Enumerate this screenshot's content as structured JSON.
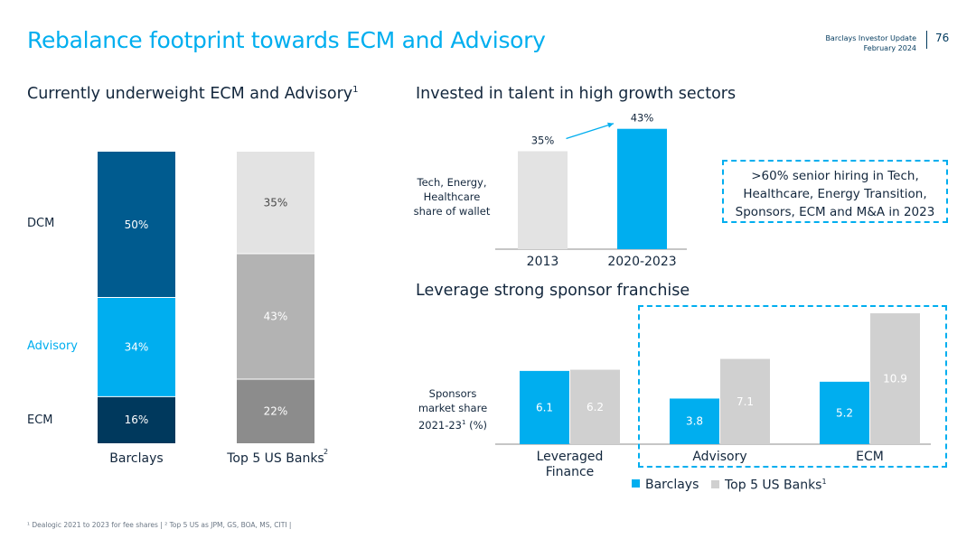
{
  "header": {
    "title": "Rebalance footprint towards ECM and Advisory",
    "doc_title": "Barclays Investor Update",
    "doc_date": "February 2024",
    "page_number": "76"
  },
  "colors": {
    "dark_navy": "#00395d",
    "mid_blue": "#005b8f",
    "bright_blue": "#00aeef",
    "grey_light": "#e3e3e3",
    "grey_mid": "#b3b3b3",
    "grey_dark": "#8c8c8c"
  },
  "left": {
    "heading": "Currently underweight ECM and Advisory",
    "heading_sup": "1",
    "row_labels": [
      "DCM",
      "Advisory",
      "ECM"
    ],
    "bar2_sup": "2"
  },
  "talent": {
    "heading": "Invested in talent in high growth sectors",
    "ylabel": "Tech, Energy, Healthcare share of wallet"
  },
  "callout": {
    "text": ">60% senior hiring in Tech, Healthcare, Energy Transition, Sponsors, ECM and M&A in 2023"
  },
  "sponsor": {
    "heading": "Leverage strong sponsor franchise",
    "ylabel": "Sponsors market share 2021-23",
    "ylabel_sup": "1",
    "ylabel_unit": "(%)",
    "legend_sup": "1"
  },
  "footnote": "¹ Dealogic 2021 to 2023 for fee shares | ² Top 5 US as JPM, GS, BOA, MS, CITI |",
  "chart_data": [
    {
      "type": "bar",
      "stacked": true,
      "categories": [
        "Barclays",
        "Top 5 US Banks"
      ],
      "series": [
        {
          "name": "ECM",
          "values": [
            16,
            22
          ],
          "labels": [
            "16%",
            "22%"
          ]
        },
        {
          "name": "Advisory",
          "values": [
            34,
            43
          ],
          "labels": [
            "34%",
            "43%"
          ]
        },
        {
          "name": "DCM",
          "values": [
            50,
            35
          ],
          "labels": [
            "50%",
            "35%"
          ]
        }
      ],
      "ylim": [
        0,
        100
      ]
    },
    {
      "type": "bar",
      "categories": [
        "2013",
        "2020-2023"
      ],
      "values": [
        35,
        43
      ],
      "labels": [
        "35%",
        "43%"
      ],
      "ylabel": "Tech, Energy, Healthcare share of wallet"
    },
    {
      "type": "bar",
      "categories": [
        "Leveraged Finance",
        "Advisory",
        "ECM"
      ],
      "series": [
        {
          "name": "Barclays",
          "values": [
            6.1,
            3.8,
            5.2
          ]
        },
        {
          "name": "Top 5 US Banks",
          "values": [
            6.2,
            7.1,
            10.9
          ]
        }
      ],
      "ylabel": "Sponsors market share 2021-23 (%)",
      "legend": "bottom"
    }
  ]
}
